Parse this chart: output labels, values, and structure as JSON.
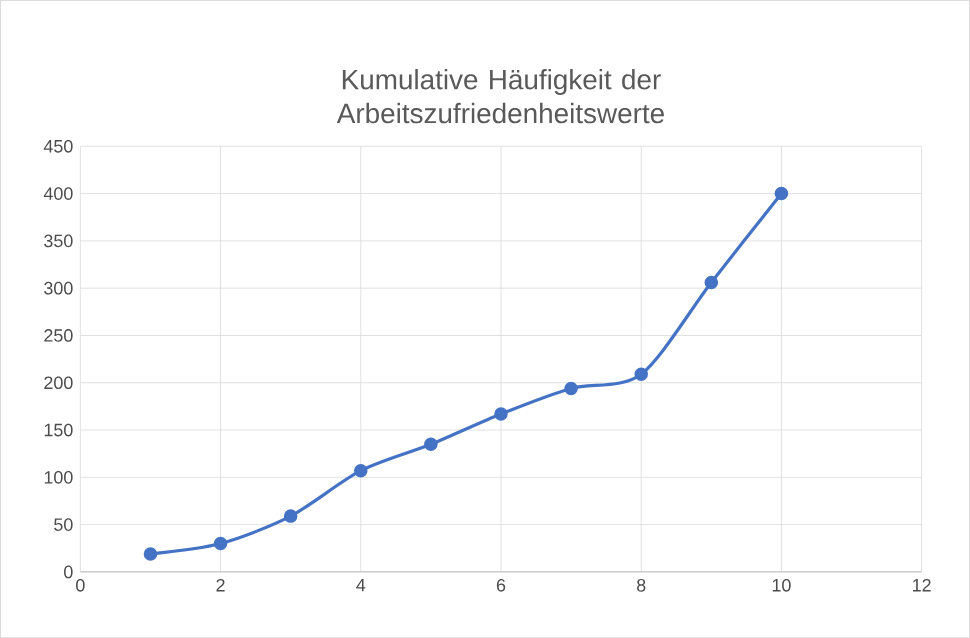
{
  "chart_data": {
    "type": "line",
    "title": "Kumulative Häufigkeit der Arbeitszufriedenheitswerte",
    "x": [
      1,
      2,
      3,
      4,
      5,
      6,
      7,
      8,
      9,
      10
    ],
    "series": [
      {
        "color": "#4472c4",
        "values": [
          19,
          30,
          59,
          107,
          135,
          167,
          194,
          209,
          306,
          400
        ]
      }
    ],
    "xlim": [
      0,
      12
    ],
    "xticks": [
      0,
      2,
      4,
      6,
      8,
      10,
      12
    ],
    "ylim": [
      0,
      450
    ],
    "yticks": [
      0,
      50,
      100,
      150,
      200,
      250,
      300,
      350,
      400,
      450
    ],
    "grid": true,
    "marker": "circle",
    "line_style": "solid"
  }
}
